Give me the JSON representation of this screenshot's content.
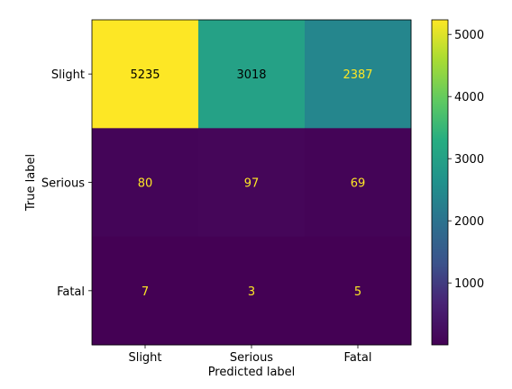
{
  "chart_data": {
    "type": "heatmap",
    "title": "",
    "xlabel": "Predicted label",
    "ylabel": "True label",
    "x_categories": [
      "Slight",
      "Serious",
      "Fatal"
    ],
    "y_categories": [
      "Slight",
      "Serious",
      "Fatal"
    ],
    "values": [
      [
        5235,
        3018,
        2387
      ],
      [
        80,
        97,
        69
      ],
      [
        7,
        3,
        5
      ]
    ],
    "colormap": "viridis",
    "colorbar": {
      "min": 3,
      "max": 5235,
      "ticks": [
        1000,
        2000,
        3000,
        4000,
        5000
      ],
      "tick_labels": [
        "1000",
        "2000",
        "3000",
        "4000",
        "5000"
      ]
    },
    "text_colors": {
      "on_dark": "#fde725",
      "on_light": "#000000"
    },
    "grid": false
  }
}
